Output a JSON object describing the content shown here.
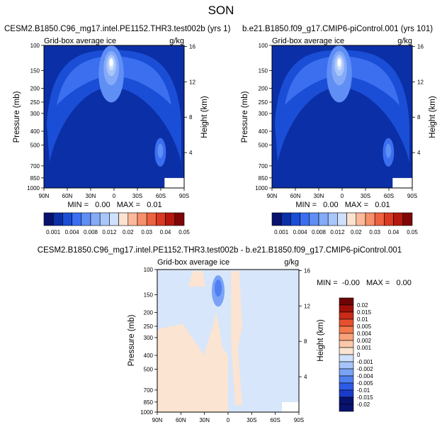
{
  "page_title": "SON",
  "colors": {
    "seq": [
      "#08136e",
      "#0b2fa6",
      "#1a4ed6",
      "#3b6ff0",
      "#5f8ef5",
      "#84aaf8",
      "#a9c6fb",
      "#cfe0fd",
      "#fde2cf",
      "#fcb99a",
      "#f7906a",
      "#ed6240",
      "#d93a22",
      "#b5180f",
      "#7e0608"
    ],
    "div": [
      "#08136e",
      "#1a3bc9",
      "#2e5ae8",
      "#4f7ff0",
      "#7aa3f6",
      "#a6c4fa",
      "#cfe0fc",
      "#fbe4d2",
      "#fcc8aa",
      "#f9a27a",
      "#f47a4e",
      "#e5502e",
      "#c92b18",
      "#a0100a",
      "#6e0504"
    ]
  },
  "chart_data": [
    {
      "type": "heatmap",
      "title": "CESM2.B1850.C96_mg17.intel.PE1152.THR3.test002b (yrs 1)",
      "subtitle": "Grid-box average ice",
      "units": "g/kg",
      "ylabel": "Pressure (mb)",
      "ylabel_right": "Height (km)",
      "x_ticks": [
        "90N",
        "60N",
        "30N",
        "0",
        "30S",
        "60S",
        "90S"
      ],
      "y_ticks": [
        "100",
        "150",
        "200",
        "250",
        "300",
        "400",
        "500",
        "700",
        "850",
        "1000"
      ],
      "y_right_ticks": [
        "16",
        "12",
        "8",
        "4"
      ],
      "stats": "MIN =   0.00   MAX =   0.01",
      "colorbar_labels": [
        "0.001",
        "0.004",
        "0.008",
        "0.012",
        "0.02",
        "0.03",
        "0.04",
        "0.05"
      ]
    },
    {
      "type": "heatmap",
      "title": "b.e21.B1850.f09_g17.CMIP6-piControl.001 (yrs 101)",
      "subtitle": "Grid-box average ice",
      "units": "g/kg",
      "ylabel": "Pressure (mb)",
      "ylabel_right": "Height (km)",
      "x_ticks": [
        "90N",
        "60N",
        "30N",
        "0",
        "30S",
        "60S",
        "90S"
      ],
      "y_ticks": [
        "100",
        "150",
        "200",
        "250",
        "300",
        "400",
        "500",
        "700",
        "850",
        "1000"
      ],
      "y_right_ticks": [
        "16",
        "12",
        "8",
        "4"
      ],
      "stats": "MIN =   0.00   MAX =   0.01",
      "colorbar_labels": [
        "0.001",
        "0.004",
        "0.008",
        "0.012",
        "0.02",
        "0.03",
        "0.04",
        "0.05"
      ]
    },
    {
      "type": "heatmap",
      "title": "CESM2.B1850.C96_mg17.intel.PE1152.THR3.test002b - b.e21.B1850.f09_g17.CMIP6-piControl.001",
      "subtitle": "Grid-box average ice",
      "units": "g/kg",
      "ylabel": "Pressure (mb)",
      "ylabel_right": "Height (km)",
      "x_ticks": [
        "90N",
        "60N",
        "30N",
        "0",
        "30S",
        "60S",
        "90S"
      ],
      "y_ticks": [
        "100",
        "150",
        "200",
        "250",
        "300",
        "400",
        "500",
        "700",
        "850",
        "1000"
      ],
      "y_right_ticks": [
        "16",
        "12",
        "8",
        "4"
      ],
      "stats": "MIN =  -0.00   MAX =   0.00",
      "colorbar_labels": [
        "0.02",
        "0.015",
        "0.01",
        "0.005",
        "0.004",
        "0.002",
        "0.001",
        "0",
        "-0.001",
        "-0.002",
        "-0.004",
        "-0.005",
        "-0.01",
        "-0.015",
        "-0.02"
      ]
    }
  ]
}
